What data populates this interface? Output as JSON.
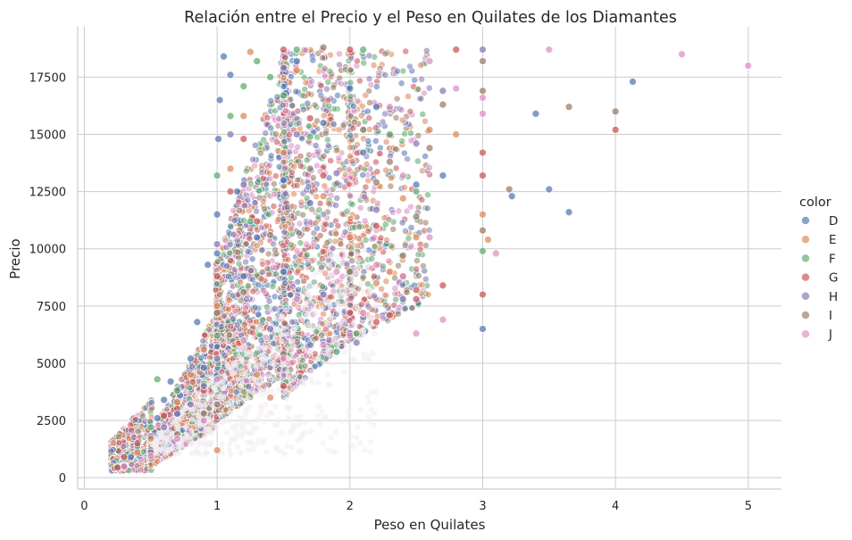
{
  "chart_data": {
    "type": "scatter",
    "title": "Relación entre el Precio y el Peso en Quilates de los Diamantes",
    "xlabel": "Peso en Quilates",
    "ylabel": "Precio",
    "xlim": [
      -0.05,
      5.25
    ],
    "ylim": [
      -500,
      19700
    ],
    "x_ticks": [
      0,
      1,
      2,
      3,
      4,
      5
    ],
    "y_ticks": [
      0,
      2500,
      5000,
      7500,
      10000,
      12500,
      15000,
      17500
    ],
    "grid": true,
    "legend_position": "right",
    "legend_title": "color",
    "series": [
      {
        "name": "D",
        "color": "#4c72b0",
        "points": [
          [
            0.23,
            400
          ],
          [
            0.3,
            560
          ],
          [
            0.35,
            900
          ],
          [
            0.4,
            1300
          ],
          [
            0.5,
            1800
          ],
          [
            0.55,
            2600
          ],
          [
            0.6,
            3400
          ],
          [
            0.65,
            4200
          ],
          [
            0.7,
            2800
          ],
          [
            0.72,
            3600
          ],
          [
            0.8,
            5200
          ],
          [
            0.85,
            6800
          ],
          [
            0.9,
            4800
          ],
          [
            0.93,
            9300
          ],
          [
            1.0,
            9800
          ],
          [
            1.0,
            11500
          ],
          [
            1.01,
            14800
          ],
          [
            1.02,
            16500
          ],
          [
            1.05,
            18400
          ],
          [
            1.1,
            17600
          ],
          [
            1.15,
            12500
          ],
          [
            1.2,
            8800
          ],
          [
            1.3,
            10500
          ],
          [
            1.5,
            13000
          ],
          [
            1.5,
            9000
          ],
          [
            1.52,
            16800
          ],
          [
            1.6,
            18200
          ],
          [
            1.7,
            12000
          ],
          [
            1.8,
            15500
          ],
          [
            2.0,
            17000
          ],
          [
            2.1,
            14200
          ],
          [
            2.2,
            16200
          ],
          [
            2.5,
            12800
          ],
          [
            2.7,
            13200
          ],
          [
            3.0,
            6500
          ],
          [
            3.4,
            15900
          ],
          [
            3.22,
            12300
          ],
          [
            4.13,
            17300
          ],
          [
            3.5,
            12600
          ],
          [
            3.65,
            11600
          ]
        ]
      },
      {
        "name": "E",
        "color": "#dd8452",
        "points": [
          [
            0.23,
            420
          ],
          [
            0.3,
            600
          ],
          [
            0.4,
            1100
          ],
          [
            0.5,
            1700
          ],
          [
            0.6,
            2700
          ],
          [
            0.7,
            3300
          ],
          [
            0.8,
            4500
          ],
          [
            0.9,
            5600
          ],
          [
            1.0,
            1200
          ],
          [
            1.0,
            7500
          ],
          [
            1.1,
            13500
          ],
          [
            1.2,
            15800
          ],
          [
            1.25,
            18600
          ],
          [
            1.5,
            14200
          ],
          [
            1.6,
            17800
          ],
          [
            1.8,
            12300
          ],
          [
            2.0,
            10500
          ],
          [
            2.2,
            8500
          ],
          [
            2.3,
            9000
          ],
          [
            2.4,
            12200
          ],
          [
            2.5,
            10500
          ],
          [
            2.6,
            15200
          ],
          [
            2.8,
            15000
          ],
          [
            3.0,
            11500
          ],
          [
            3.04,
            10400
          ],
          [
            2.4,
            8800
          ],
          [
            1.3,
            4500
          ],
          [
            1.4,
            3500
          ]
        ]
      },
      {
        "name": "F",
        "color": "#55a868",
        "points": [
          [
            0.25,
            480
          ],
          [
            0.3,
            700
          ],
          [
            0.4,
            1400
          ],
          [
            0.5,
            2200
          ],
          [
            0.55,
            4300
          ],
          [
            0.7,
            3800
          ],
          [
            0.9,
            4100
          ],
          [
            1.0,
            6200
          ],
          [
            1.0,
            13200
          ],
          [
            1.1,
            15800
          ],
          [
            1.2,
            17100
          ],
          [
            1.3,
            18200
          ],
          [
            1.4,
            17500
          ],
          [
            1.5,
            16700
          ],
          [
            1.6,
            18700
          ],
          [
            1.7,
            14900
          ],
          [
            1.9,
            5500
          ],
          [
            2.0,
            9000
          ],
          [
            2.1,
            18700
          ],
          [
            2.3,
            15000
          ],
          [
            2.5,
            12500
          ],
          [
            3.0,
            9900
          ],
          [
            2.05,
            6300
          ],
          [
            1.25,
            11200
          ]
        ]
      },
      {
        "name": "G",
        "color": "#c44e52",
        "points": [
          [
            0.25,
            440
          ],
          [
            0.3,
            900
          ],
          [
            0.4,
            1500
          ],
          [
            0.6,
            2700
          ],
          [
            0.7,
            3000
          ],
          [
            0.9,
            3800
          ],
          [
            1.0,
            8800
          ],
          [
            1.1,
            12500
          ],
          [
            1.2,
            14800
          ],
          [
            1.3,
            11200
          ],
          [
            1.5,
            4000
          ],
          [
            1.5,
            18700
          ],
          [
            1.7,
            15700
          ],
          [
            1.8,
            13200
          ],
          [
            2.0,
            18700
          ],
          [
            2.0,
            7200
          ],
          [
            2.2,
            6800
          ],
          [
            2.3,
            7100
          ],
          [
            2.5,
            7800
          ],
          [
            2.5,
            8200
          ],
          [
            2.7,
            8400
          ],
          [
            3.0,
            14200
          ],
          [
            3.0,
            13200
          ],
          [
            3.0,
            8000
          ],
          [
            4.0,
            15200
          ],
          [
            2.8,
            18700
          ],
          [
            2.2,
            11000
          ]
        ]
      },
      {
        "name": "H",
        "color": "#8172b3",
        "points": [
          [
            0.3,
            550
          ],
          [
            0.5,
            1200
          ],
          [
            0.6,
            2200
          ],
          [
            0.7,
            2800
          ],
          [
            0.8,
            3200
          ],
          [
            0.9,
            4000
          ],
          [
            1.0,
            5200
          ],
          [
            1.0,
            10200
          ],
          [
            1.1,
            15000
          ],
          [
            1.2,
            12800
          ],
          [
            1.4,
            6500
          ],
          [
            1.5,
            17900
          ],
          [
            1.6,
            15000
          ],
          [
            1.7,
            5800
          ],
          [
            1.8,
            8000
          ],
          [
            2.0,
            6300
          ],
          [
            2.1,
            7000
          ],
          [
            2.2,
            11700
          ],
          [
            2.4,
            7800
          ],
          [
            2.5,
            14600
          ],
          [
            2.7,
            16900
          ],
          [
            3.0,
            18700
          ],
          [
            2.3,
            16100
          ],
          [
            2.05,
            5900
          ],
          [
            1.9,
            13300
          ]
        ]
      },
      {
        "name": "I",
        "color": "#937860",
        "points": [
          [
            0.3,
            510
          ],
          [
            0.5,
            1100
          ],
          [
            0.7,
            1900
          ],
          [
            0.9,
            2800
          ],
          [
            1.0,
            3200
          ],
          [
            1.0,
            7200
          ],
          [
            1.2,
            8100
          ],
          [
            1.4,
            10600
          ],
          [
            1.5,
            5400
          ],
          [
            1.7,
            13500
          ],
          [
            1.8,
            18800
          ],
          [
            2.0,
            9000
          ],
          [
            2.1,
            15200
          ],
          [
            2.2,
            12900
          ],
          [
            2.3,
            13800
          ],
          [
            2.5,
            11400
          ],
          [
            2.6,
            14400
          ],
          [
            2.7,
            16300
          ],
          [
            3.0,
            16900
          ],
          [
            3.0,
            10800
          ],
          [
            3.0,
            18200
          ],
          [
            3.2,
            12600
          ],
          [
            3.65,
            16200
          ],
          [
            4.0,
            16000
          ],
          [
            2.4,
            9700
          ]
        ]
      },
      {
        "name": "J",
        "color": "#da8bc3",
        "points": [
          [
            0.3,
            480
          ],
          [
            0.5,
            950
          ],
          [
            0.7,
            1700
          ],
          [
            0.9,
            2500
          ],
          [
            1.0,
            4300
          ],
          [
            1.2,
            6000
          ],
          [
            1.5,
            5200
          ],
          [
            1.6,
            7800
          ],
          [
            1.8,
            5800
          ],
          [
            1.9,
            9000
          ],
          [
            2.0,
            6200
          ],
          [
            2.1,
            7200
          ],
          [
            2.2,
            9300
          ],
          [
            2.3,
            16200
          ],
          [
            2.4,
            8800
          ],
          [
            2.5,
            6300
          ],
          [
            2.6,
            10500
          ],
          [
            2.7,
            6900
          ],
          [
            2.8,
            17000
          ],
          [
            3.0,
            15900
          ],
          [
            3.0,
            16600
          ],
          [
            3.1,
            9800
          ],
          [
            3.5,
            18700
          ],
          [
            4.5,
            18500
          ],
          [
            5.0,
            18000
          ],
          [
            2.6,
            18200
          ],
          [
            2.4,
            13200
          ]
        ]
      }
    ]
  }
}
